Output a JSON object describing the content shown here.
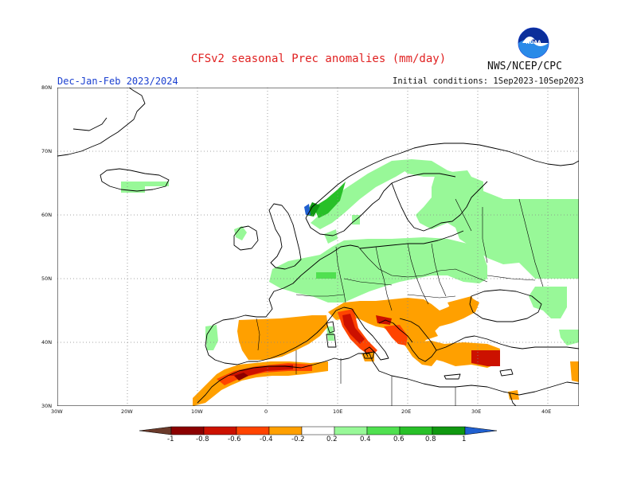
{
  "header": {
    "title": "CFSv2 seasonal Prec anomalies (mm/day)",
    "agency": "NWS/NCEP/CPC",
    "period": "Dec-Jan-Feb 2023/2024",
    "initial_conditions": "Initial conditions: 1Sep2023-10Sep2023",
    "logo_text": "NOAA"
  },
  "axes": {
    "lat_labels": [
      "80N",
      "70N",
      "60N",
      "50N",
      "40N",
      "30N"
    ],
    "lon_labels": [
      "30W",
      "20W",
      "10W",
      "0",
      "10E",
      "20E",
      "30E",
      "40E"
    ]
  },
  "colorbar": {
    "labels": [
      "-1",
      "-0.8",
      "-0.6",
      "-0.4",
      "-0.2",
      "0.2",
      "0.4",
      "0.6",
      "0.8",
      "1"
    ],
    "colors": {
      "lt_m1": "#6b3a2a",
      "m1_m08": "#8b0000",
      "m08_m06": "#cc1100",
      "m06_m04": "#ff4400",
      "m04_m02": "#ffa000",
      "m02_02": "#ffffff",
      "p02_p04": "#98f898",
      "p04_p06": "#50e050",
      "p06_p08": "#28c028",
      "p08_p1": "#109810",
      "gt_p1": "#2060d0"
    }
  }
}
